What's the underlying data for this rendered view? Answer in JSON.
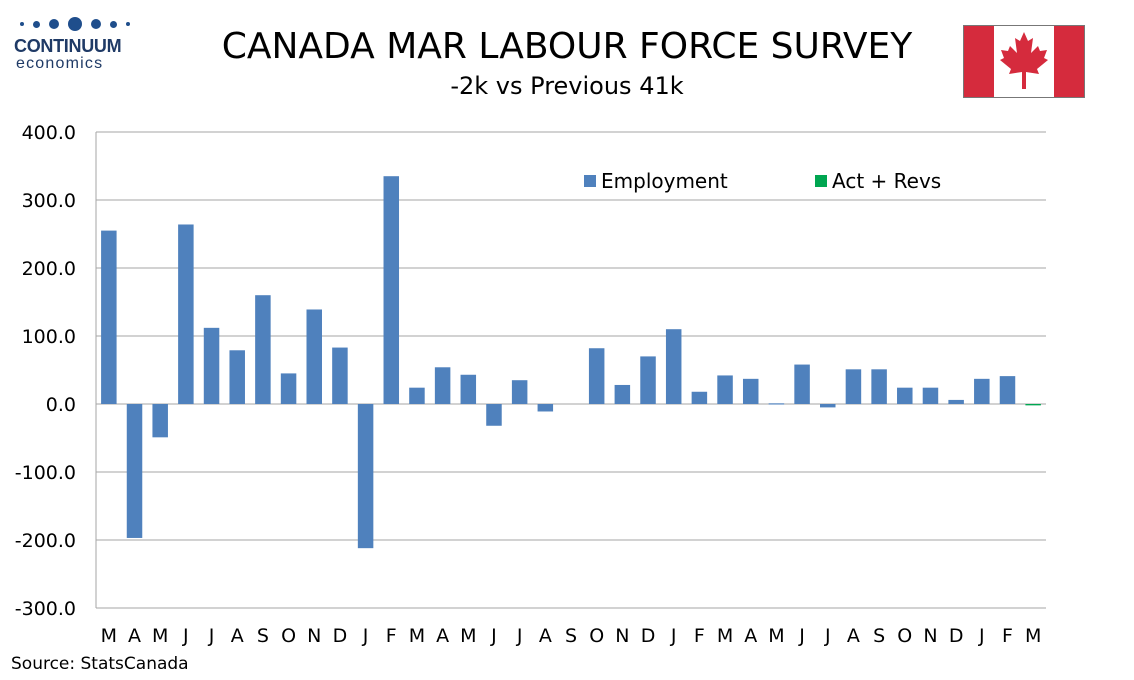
{
  "logo": {
    "brand": "CONTINUUM",
    "sub": "economics"
  },
  "title": "CANADA MAR LABOUR FORCE SURVEY",
  "subtitle": "-2k vs Previous 41k",
  "source": "Source: StatsCanada",
  "colors": {
    "employment": "#4f81bd",
    "act_revs": "#00a651",
    "flag_red": "#d52b3d"
  },
  "flag_icon": "canada-maple-leaf-flag",
  "chart_data": {
    "type": "bar",
    "title": "",
    "xlabel": "",
    "ylabel": "",
    "ylim": [
      -300,
      400
    ],
    "yticks": [
      "400.0",
      "300.0",
      "200.0",
      "100.0",
      "0.0",
      "-100.0",
      "-200.0",
      "-300.0"
    ],
    "categories": [
      "M",
      "A",
      "M",
      "J",
      "J",
      "A",
      "S",
      "O",
      "N",
      "D",
      "J",
      "F",
      "M",
      "A",
      "M",
      "J",
      "J",
      "A",
      "S",
      "O",
      "N",
      "D",
      "J",
      "F",
      "M",
      "A",
      "M",
      "J",
      "J",
      "A",
      "S",
      "O",
      "N",
      "D",
      "J",
      "F",
      "M"
    ],
    "grid": true,
    "legend_position": "top-right",
    "series": [
      {
        "name": "Employment",
        "values": [
          255,
          -197,
          -49,
          264,
          112,
          79,
          160,
          45,
          139,
          83,
          -212,
          335,
          24,
          54,
          43,
          -32,
          35,
          -11,
          0,
          82,
          28,
          70,
          110,
          18,
          42,
          37,
          1,
          58,
          -5,
          51,
          51,
          24,
          24,
          6,
          37,
          41,
          0
        ]
      },
      {
        "name": "Act + Revs",
        "values": [
          0,
          0,
          0,
          0,
          0,
          0,
          0,
          0,
          0,
          0,
          0,
          0,
          0,
          0,
          0,
          0,
          0,
          0,
          0,
          0,
          0,
          0,
          0,
          0,
          0,
          0,
          0,
          0,
          0,
          0,
          0,
          0,
          0,
          0,
          0,
          0,
          -2
        ]
      }
    ]
  }
}
